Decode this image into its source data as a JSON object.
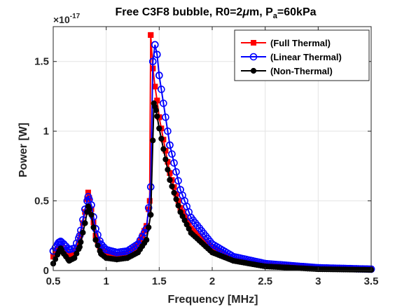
{
  "chart_data": {
    "type": "line",
    "title": {
      "main": "Free C3F8 bubble, R0=2",
      "mu": "μ",
      "unit": "m, P",
      "sub": "a",
      "tail": "=60kPa"
    },
    "xlabel": "Frequency [MHz]",
    "ylabel": "Power [W]",
    "y_exponent": {
      "base": "×10",
      "power": "-17"
    },
    "xlim": [
      0.5,
      3.5
    ],
    "ylim": [
      0,
      1.75
    ],
    "xticks": [
      0.5,
      1,
      1.5,
      2,
      2.5,
      3,
      3.5
    ],
    "xtick_labels": [
      "0.5",
      "1",
      "1.5",
      "2",
      "2.5",
      "3",
      "3.5"
    ],
    "yticks": [
      0,
      0.5,
      1,
      1.5
    ],
    "ytick_labels": [
      "0",
      "0.5",
      "1",
      "1.5"
    ],
    "grid": true,
    "legend_position": "top-right",
    "series": [
      {
        "name": "(Full Thermal)",
        "color": "#ff0000",
        "marker": "square",
        "points": [
          [
            0.5,
            0.1
          ],
          [
            0.55,
            0.16
          ],
          [
            0.57,
            0.17
          ],
          [
            0.6,
            0.15
          ],
          [
            0.65,
            0.11
          ],
          [
            0.7,
            0.13
          ],
          [
            0.75,
            0.22
          ],
          [
            0.8,
            0.42
          ],
          [
            0.83,
            0.56
          ],
          [
            0.86,
            0.44
          ],
          [
            0.9,
            0.25
          ],
          [
            0.95,
            0.15
          ],
          [
            1.0,
            0.12
          ],
          [
            1.1,
            0.11
          ],
          [
            1.2,
            0.12
          ],
          [
            1.3,
            0.18
          ],
          [
            1.38,
            0.32
          ],
          [
            1.41,
            0.5
          ],
          [
            1.42,
            1.69
          ],
          [
            1.44,
            1.45
          ],
          [
            1.46,
            1.32
          ],
          [
            1.48,
            1.22
          ],
          [
            1.5,
            1.1
          ],
          [
            1.6,
            0.7
          ],
          [
            1.7,
            0.45
          ],
          [
            1.8,
            0.3
          ],
          [
            2.0,
            0.15
          ],
          [
            2.2,
            0.08
          ],
          [
            2.5,
            0.04
          ],
          [
            3.0,
            0.02
          ],
          [
            3.5,
            0.01
          ]
        ]
      },
      {
        "name": "(Linear Thermal)",
        "color": "#0000ff",
        "marker": "circle",
        "points": [
          [
            0.5,
            0.14
          ],
          [
            0.55,
            0.2
          ],
          [
            0.57,
            0.21
          ],
          [
            0.6,
            0.19
          ],
          [
            0.65,
            0.15
          ],
          [
            0.7,
            0.16
          ],
          [
            0.75,
            0.25
          ],
          [
            0.8,
            0.44
          ],
          [
            0.83,
            0.53
          ],
          [
            0.86,
            0.47
          ],
          [
            0.9,
            0.3
          ],
          [
            0.95,
            0.19
          ],
          [
            1.0,
            0.15
          ],
          [
            1.1,
            0.13
          ],
          [
            1.2,
            0.14
          ],
          [
            1.3,
            0.19
          ],
          [
            1.38,
            0.3
          ],
          [
            1.42,
            0.6
          ],
          [
            1.44,
            1.5
          ],
          [
            1.46,
            1.62
          ],
          [
            1.48,
            1.55
          ],
          [
            1.5,
            1.4
          ],
          [
            1.6,
            0.9
          ],
          [
            1.7,
            0.58
          ],
          [
            1.8,
            0.38
          ],
          [
            2.0,
            0.19
          ],
          [
            2.2,
            0.1
          ],
          [
            2.5,
            0.05
          ],
          [
            3.0,
            0.02
          ],
          [
            3.5,
            0.01
          ]
        ]
      },
      {
        "name": "(Non-Thermal)",
        "color": "#000000",
        "marker": "circle-filled",
        "points": [
          [
            0.5,
            0.05
          ],
          [
            0.55,
            0.13
          ],
          [
            0.57,
            0.16
          ],
          [
            0.6,
            0.12
          ],
          [
            0.65,
            0.07
          ],
          [
            0.7,
            0.09
          ],
          [
            0.75,
            0.17
          ],
          [
            0.8,
            0.34
          ],
          [
            0.83,
            0.46
          ],
          [
            0.86,
            0.4
          ],
          [
            0.9,
            0.22
          ],
          [
            0.95,
            0.12
          ],
          [
            1.0,
            0.09
          ],
          [
            1.1,
            0.08
          ],
          [
            1.2,
            0.09
          ],
          [
            1.3,
            0.13
          ],
          [
            1.38,
            0.22
          ],
          [
            1.42,
            0.4
          ],
          [
            1.45,
            1.2
          ],
          [
            1.47,
            1.15
          ],
          [
            1.5,
            1.02
          ],
          [
            1.6,
            0.65
          ],
          [
            1.7,
            0.42
          ],
          [
            1.8,
            0.27
          ],
          [
            2.0,
            0.13
          ],
          [
            2.2,
            0.07
          ],
          [
            2.5,
            0.03
          ],
          [
            3.0,
            0.01
          ],
          [
            3.5,
            0.005
          ]
        ]
      }
    ]
  }
}
